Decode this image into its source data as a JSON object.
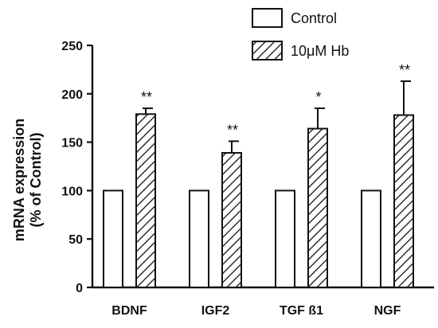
{
  "chart_data": {
    "type": "bar",
    "title": "",
    "xlabel": "",
    "ylabel": [
      "mRNA expression",
      "(% of Control)"
    ],
    "categories": [
      "BDNF",
      "IGF2",
      "TGF ß1",
      "NGF"
    ],
    "series": [
      {
        "name": "Control",
        "pattern": "solid",
        "fill": "#ffffff",
        "values": [
          100,
          100,
          100,
          100
        ],
        "errors": [
          0,
          0,
          0,
          0
        ]
      },
      {
        "name": "10μM Hb",
        "pattern": "hatched",
        "fill": "#ffffff",
        "values": [
          179,
          139,
          164,
          178
        ],
        "errors": [
          6,
          12,
          21,
          35
        ]
      }
    ],
    "significance": [
      "**",
      "**",
      "*",
      "**"
    ],
    "ylim": [
      0,
      250
    ],
    "yticks": [
      0,
      50,
      100,
      150,
      200,
      250
    ],
    "grid": false,
    "legend_position": "top-right",
    "colors": {
      "stroke": "#111111",
      "background": "#ffffff"
    }
  }
}
